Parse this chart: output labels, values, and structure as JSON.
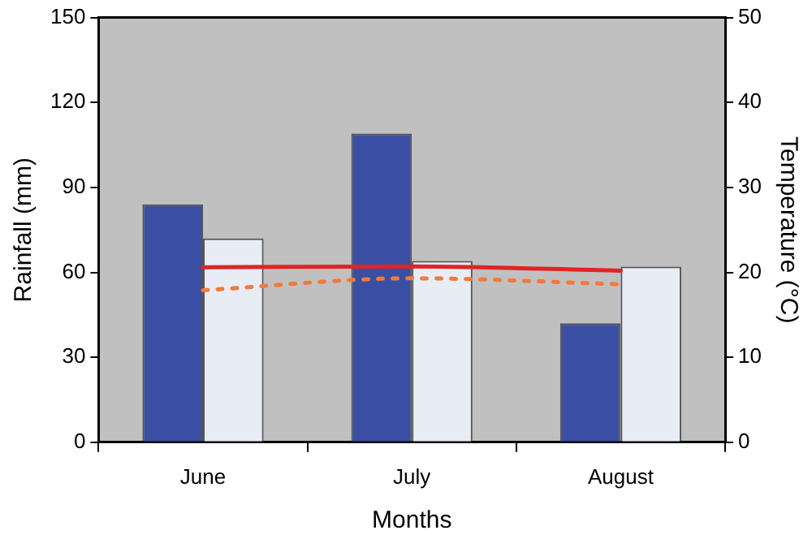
{
  "chart_data": {
    "type": "bar",
    "xlabel": "Months",
    "ylabel": "Rainfall (mm)",
    "y2label": "Temperature (°C)",
    "categories": [
      "June",
      "July",
      "August"
    ],
    "series": [
      {
        "color": "#3a4fa3",
        "values": [
          84,
          109,
          42
        ]
      },
      {
        "color": "#e8ecf4",
        "values": [
          72,
          64,
          62
        ]
      },
      {
        "type": "line",
        "axis": "y2",
        "color": "#e02424",
        "line_style": "solid",
        "values": [
          20.6,
          20.7,
          20.2
        ]
      },
      {
        "type": "line",
        "axis": "y2",
        "color": "#f07a3c",
        "line_style": "dotted",
        "values": [
          17.9,
          19.3,
          18.6
        ]
      }
    ],
    "ylim": [
      0,
      150
    ],
    "yticks": [
      0,
      30,
      60,
      90,
      120,
      150
    ],
    "y2lim": [
      0,
      50
    ],
    "y2ticks": [
      0,
      10,
      20,
      30,
      40,
      50
    ],
    "grid": false,
    "legend": false,
    "marker": "none"
  }
}
